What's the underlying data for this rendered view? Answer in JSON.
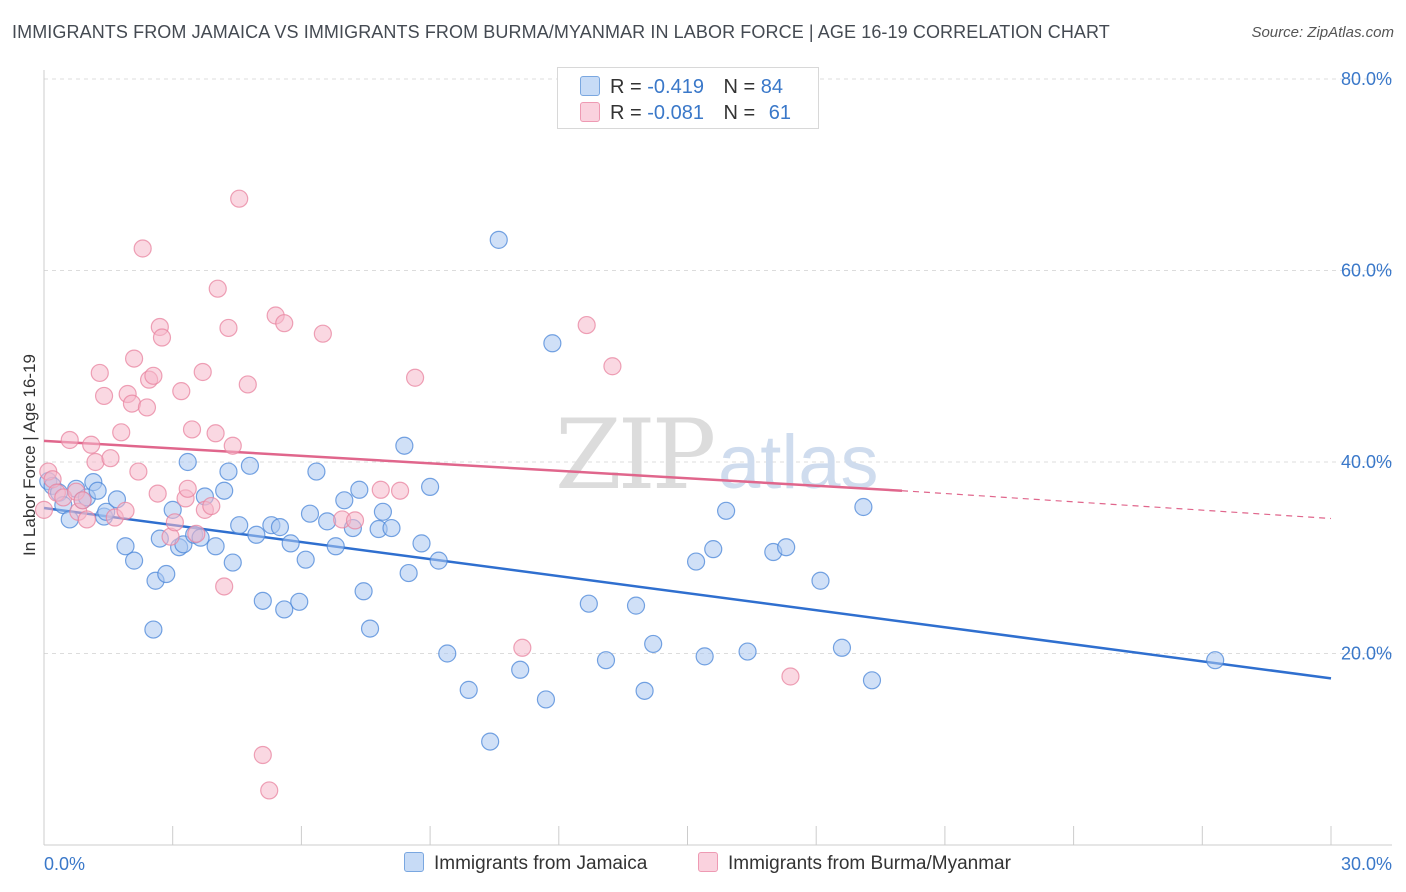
{
  "title": "IMMIGRANTS FROM JAMAICA VS IMMIGRANTS FROM BURMA/MYANMAR IN LABOR FORCE | AGE 16-19 CORRELATION CHART",
  "source": "Source: ZipAtlas.com",
  "watermark": {
    "zip": "ZIP",
    "atlas": "atlas"
  },
  "legend": {
    "rows": [
      {
        "r_label": "R =",
        "r_value": "-0.419",
        "n_label": "N =",
        "n_value": "84",
        "color": "#a9c7f0"
      },
      {
        "r_label": "R =",
        "r_value": "-0.081",
        "n_label": "N =",
        "n_value": "61",
        "color": "#f6b8cb"
      }
    ]
  },
  "bottom_legend": [
    {
      "label": "Immigrants from Jamaica",
      "color": "#a9c7f0"
    },
    {
      "label": "Immigrants from Burma/Myanmar",
      "color": "#f6b8cb"
    }
  ],
  "chart_data": {
    "type": "scatter",
    "xlabel": "",
    "ylabel": "In Labor Force | Age 16-19",
    "xlim": [
      0,
      30
    ],
    "ylim": [
      0,
      80
    ],
    "x_tick_labels": [
      "0.0%",
      "30.0%"
    ],
    "y_tick_labels": [
      "20.0%",
      "40.0%",
      "60.0%",
      "80.0%"
    ],
    "y_ticks": [
      20,
      40,
      60,
      80
    ],
    "grid": "horizontal dashed",
    "legend_position": "top-center",
    "series": [
      {
        "name": "Immigrants from Jamaica",
        "color": "#4a86d8",
        "fill": "#a9c7f0",
        "trend": {
          "x": [
            0,
            30
          ],
          "y": [
            35.2,
            17.4
          ],
          "color": "#2f6fcf"
        },
        "points": [
          [
            0.1,
            38.0
          ],
          [
            0.2,
            37.5
          ],
          [
            0.35,
            36.8
          ],
          [
            0.45,
            35.5
          ],
          [
            0.6,
            34.0
          ],
          [
            0.75,
            37.2
          ],
          [
            0.9,
            36.0
          ],
          [
            1.0,
            36.3
          ],
          [
            1.15,
            37.9
          ],
          [
            1.25,
            37.0
          ],
          [
            1.4,
            34.3
          ],
          [
            1.45,
            34.8
          ],
          [
            1.7,
            36.1
          ],
          [
            1.9,
            31.2
          ],
          [
            2.1,
            29.7
          ],
          [
            2.55,
            22.5
          ],
          [
            2.6,
            27.6
          ],
          [
            2.7,
            32.0
          ],
          [
            2.85,
            28.3
          ],
          [
            3.0,
            35.0
          ],
          [
            3.15,
            31.1
          ],
          [
            3.25,
            31.4
          ],
          [
            3.35,
            40.0
          ],
          [
            3.5,
            32.4
          ],
          [
            3.65,
            32.1
          ],
          [
            3.75,
            36.4
          ],
          [
            4.0,
            31.2
          ],
          [
            4.2,
            37.0
          ],
          [
            4.3,
            39.0
          ],
          [
            4.4,
            29.5
          ],
          [
            4.55,
            33.4
          ],
          [
            4.8,
            39.6
          ],
          [
            4.95,
            32.4
          ],
          [
            5.1,
            25.5
          ],
          [
            5.3,
            33.4
          ],
          [
            5.5,
            33.2
          ],
          [
            5.6,
            24.6
          ],
          [
            5.75,
            31.5
          ],
          [
            5.95,
            25.4
          ],
          [
            6.1,
            29.8
          ],
          [
            6.2,
            34.6
          ],
          [
            6.35,
            39.0
          ],
          [
            6.6,
            33.8
          ],
          [
            6.8,
            31.2
          ],
          [
            7.0,
            36.0
          ],
          [
            7.2,
            33.1
          ],
          [
            7.35,
            37.1
          ],
          [
            7.45,
            26.5
          ],
          [
            7.6,
            22.6
          ],
          [
            7.8,
            33.0
          ],
          [
            7.9,
            34.8
          ],
          [
            8.1,
            33.1
          ],
          [
            8.4,
            41.7
          ],
          [
            8.5,
            28.4
          ],
          [
            8.8,
            31.5
          ],
          [
            9.0,
            37.4
          ],
          [
            9.2,
            29.7
          ],
          [
            9.4,
            20.0
          ],
          [
            9.9,
            16.2
          ],
          [
            10.4,
            10.8
          ],
          [
            10.6,
            63.2
          ],
          [
            11.1,
            18.3
          ],
          [
            11.7,
            15.2
          ],
          [
            11.85,
            52.4
          ],
          [
            12.7,
            25.2
          ],
          [
            13.1,
            19.3
          ],
          [
            13.8,
            25.0
          ],
          [
            14.0,
            16.1
          ],
          [
            14.2,
            21.0
          ],
          [
            15.2,
            29.6
          ],
          [
            15.4,
            19.7
          ],
          [
            15.6,
            30.9
          ],
          [
            15.9,
            34.9
          ],
          [
            16.4,
            20.2
          ],
          [
            17.0,
            30.6
          ],
          [
            17.3,
            31.1
          ],
          [
            18.1,
            27.6
          ],
          [
            18.6,
            20.6
          ],
          [
            19.1,
            35.3
          ],
          [
            19.3,
            17.2
          ],
          [
            27.3,
            19.3
          ]
        ]
      },
      {
        "name": "Immigrants from Burma/Myanmar",
        "color": "#e8839f",
        "fill": "#f6b8cb",
        "trend": {
          "x": [
            0,
            20
          ],
          "y": [
            42.2,
            37.0
          ],
          "color": "#e0668c",
          "dashed_extension": {
            "x": [
              20,
              30
            ],
            "y": [
              37.0,
              34.1
            ]
          }
        },
        "points": [
          [
            0.0,
            35.0
          ],
          [
            0.1,
            39.0
          ],
          [
            0.2,
            38.2
          ],
          [
            0.3,
            36.8
          ],
          [
            0.45,
            36.3
          ],
          [
            0.6,
            42.3
          ],
          [
            0.75,
            36.9
          ],
          [
            0.8,
            34.8
          ],
          [
            0.9,
            36.0
          ],
          [
            1.0,
            34.0
          ],
          [
            1.1,
            41.8
          ],
          [
            1.2,
            40.0
          ],
          [
            1.3,
            49.3
          ],
          [
            1.4,
            46.9
          ],
          [
            1.55,
            40.4
          ],
          [
            1.65,
            34.2
          ],
          [
            1.8,
            43.1
          ],
          [
            1.9,
            34.9
          ],
          [
            1.95,
            47.1
          ],
          [
            2.05,
            46.1
          ],
          [
            2.1,
            50.8
          ],
          [
            2.2,
            39.0
          ],
          [
            2.3,
            62.3
          ],
          [
            2.4,
            45.7
          ],
          [
            2.45,
            48.6
          ],
          [
            2.55,
            49.0
          ],
          [
            2.65,
            36.7
          ],
          [
            2.7,
            54.1
          ],
          [
            2.75,
            53.0
          ],
          [
            2.95,
            32.2
          ],
          [
            3.05,
            33.7
          ],
          [
            3.2,
            47.4
          ],
          [
            3.3,
            36.2
          ],
          [
            3.35,
            37.2
          ],
          [
            3.45,
            43.4
          ],
          [
            3.55,
            32.5
          ],
          [
            3.7,
            49.4
          ],
          [
            3.75,
            35.0
          ],
          [
            3.9,
            35.4
          ],
          [
            4.0,
            43.0
          ],
          [
            4.05,
            58.1
          ],
          [
            4.2,
            27.0
          ],
          [
            4.3,
            54.0
          ],
          [
            4.4,
            41.7
          ],
          [
            4.55,
            67.5
          ],
          [
            4.75,
            48.1
          ],
          [
            5.1,
            9.4
          ],
          [
            5.25,
            5.7
          ],
          [
            5.4,
            55.3
          ],
          [
            5.6,
            54.5
          ],
          [
            6.5,
            53.4
          ],
          [
            6.95,
            34.0
          ],
          [
            7.25,
            33.9
          ],
          [
            7.85,
            37.1
          ],
          [
            8.3,
            37.0
          ],
          [
            8.65,
            48.8
          ],
          [
            11.15,
            20.6
          ],
          [
            12.65,
            54.3
          ],
          [
            13.25,
            50.0
          ],
          [
            17.4,
            17.6
          ]
        ]
      }
    ]
  }
}
